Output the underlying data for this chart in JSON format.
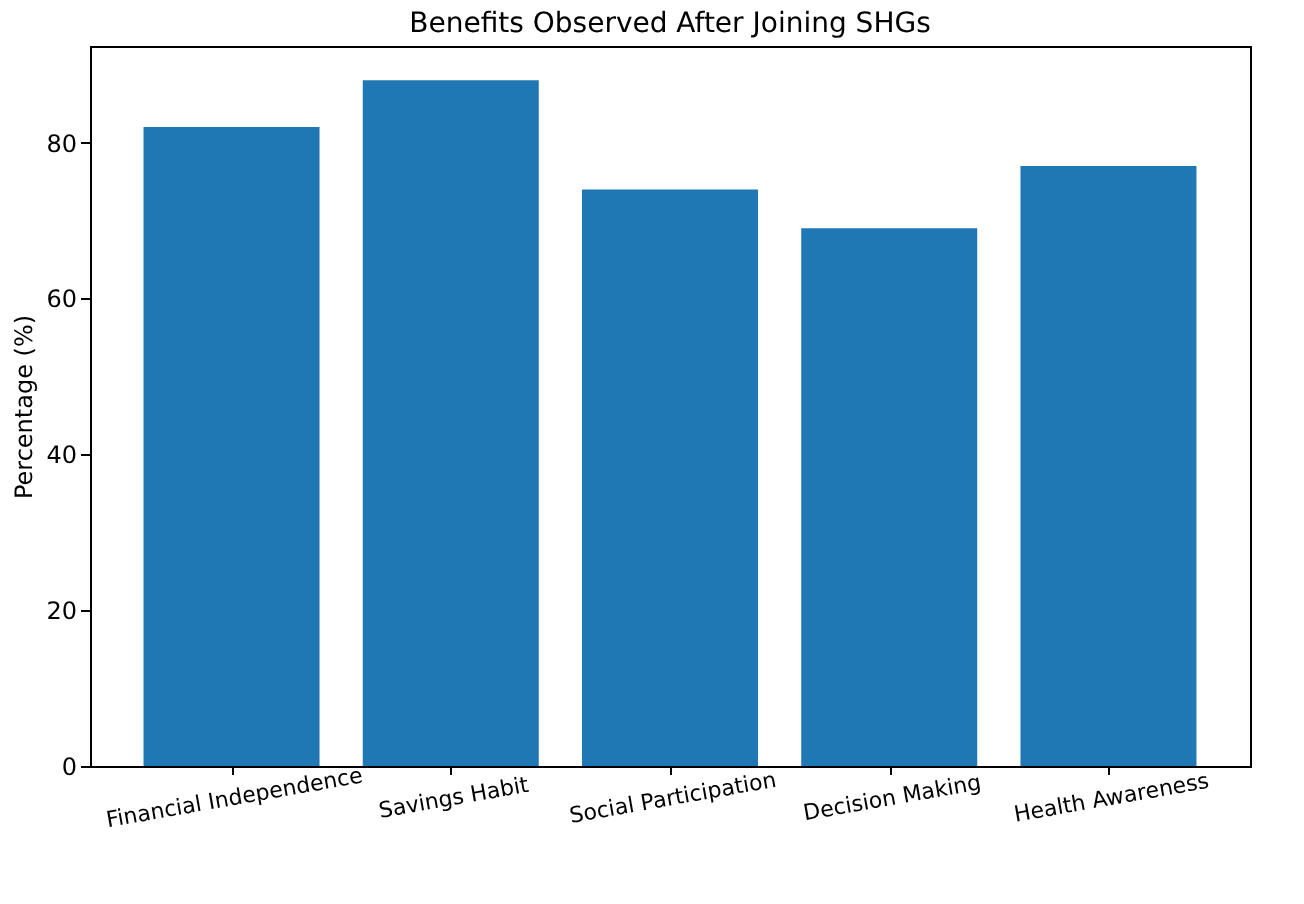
{
  "chart_data": {
    "type": "bar",
    "title": "Benefits Observed After Joining SHGs",
    "ylabel": "Percentage (%)",
    "categories": [
      "Financial Independence",
      "Savings Habit",
      "Social Participation",
      "Decision Making",
      "Health Awareness"
    ],
    "values": [
      82,
      88,
      74,
      69,
      77
    ],
    "color": "#1f77b4",
    "ylim": [
      0,
      92.4
    ],
    "yticks": [
      0,
      20,
      40,
      60,
      80
    ],
    "grid": false
  }
}
